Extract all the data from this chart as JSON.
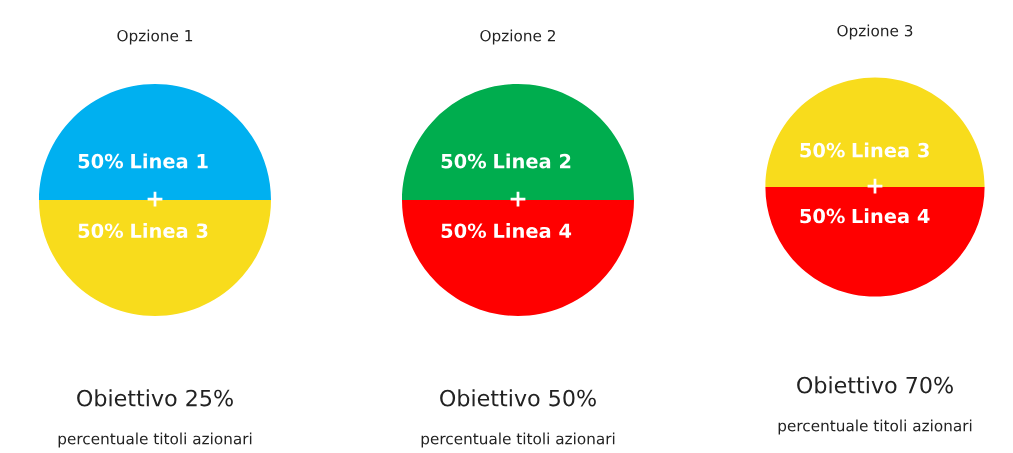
{
  "chart_data": [
    {
      "type": "pie",
      "title": "Opzione 1",
      "categories": [
        "Linea 1",
        "Linea 3"
      ],
      "values": [
        50,
        50
      ],
      "colors": [
        "#00b0f0",
        "#f8dc1c"
      ],
      "value_labels": [
        "50%",
        "50%"
      ],
      "annotations": [
        "+",
        "Obiettivo 25%",
        "percentuale titoli azionari"
      ]
    },
    {
      "type": "pie",
      "title": "Opzione 2",
      "categories": [
        "Linea 2",
        "Linea 4"
      ],
      "values": [
        50,
        50
      ],
      "colors": [
        "#00ad4e",
        "#ff0000"
      ],
      "value_labels": [
        "50%",
        "50%"
      ],
      "annotations": [
        "+",
        "Obiettivo 50%",
        "percentuale titoli azionari"
      ]
    },
    {
      "type": "pie",
      "title": "Opzione 3",
      "categories": [
        "Linea 3",
        "Linea 4"
      ],
      "values": [
        50,
        50
      ],
      "colors": [
        "#f8dc1c",
        "#ff0000"
      ],
      "value_labels": [
        "50%",
        "50%"
      ],
      "annotations": [
        "+",
        "Obiettivo 70%",
        "percentuale titoli azionari"
      ]
    }
  ]
}
